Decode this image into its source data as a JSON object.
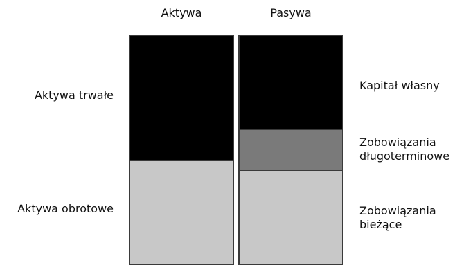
{
  "headers": {
    "assets": "Aktywa",
    "liabilities": "Pasywa"
  },
  "assets_labels": {
    "fixed": "Aktywa trwałe",
    "current": "Aktywa obrotowe"
  },
  "liabilities_labels": {
    "equity": "Kapitał własny",
    "long_term": "Zobowiązania\ndługoterminowe",
    "current": "Zobowiązania\nbieżące"
  },
  "colors": {
    "fixed_assets": "#000000",
    "current_assets": "#c8c8c8",
    "equity": "#000000",
    "long_term_liabilities": "#7a7a7a",
    "current_liabilities": "#c8c8c8",
    "border": "#3a3a3a"
  }
}
